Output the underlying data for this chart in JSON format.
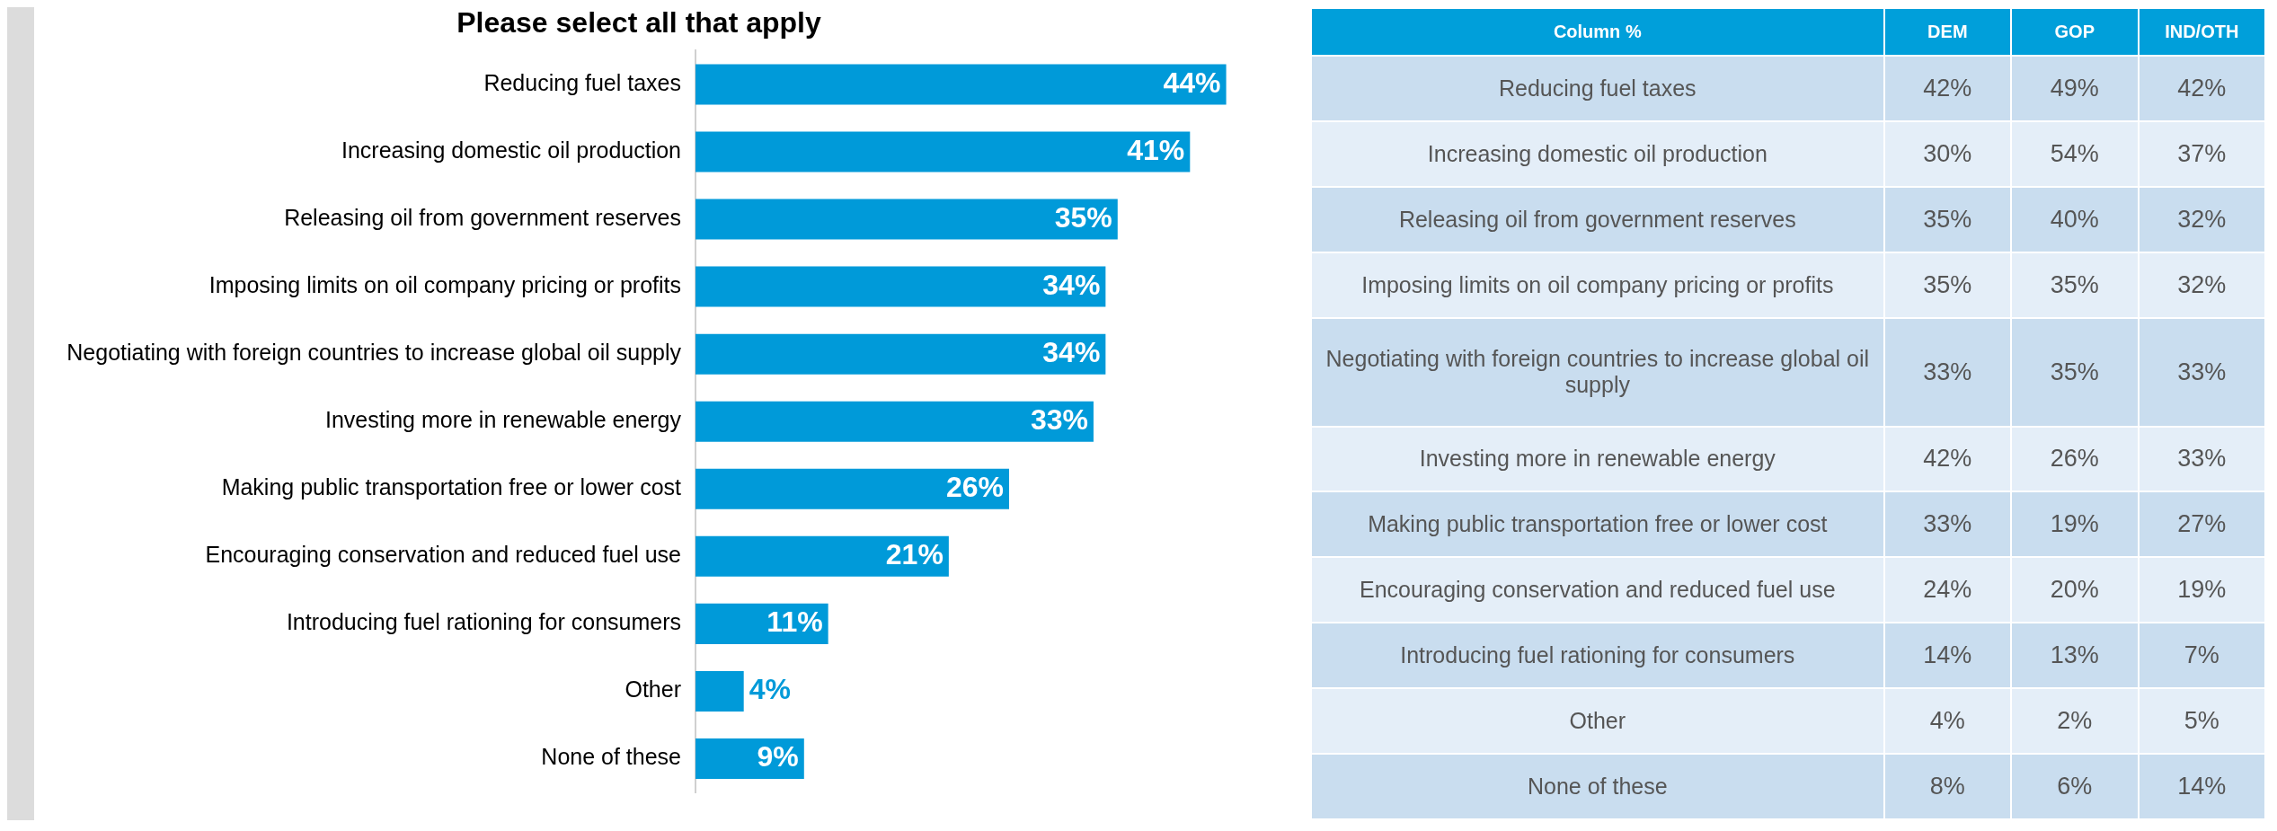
{
  "chart_data": [
    {
      "type": "bar",
      "orientation": "horizontal",
      "title": "Please select all that apply",
      "categories": [
        "Reducing fuel taxes",
        "Increasing domestic oil production",
        "Releasing oil from government reserves",
        "Imposing limits on oil company pricing or profits",
        "Negotiating with foreign countries to increase global oil supply",
        "Investing more in renewable energy",
        "Making public transportation free or lower cost",
        "Encouraging conservation and reduced fuel use",
        "Introducing fuel rationing for consumers",
        "Other",
        "None of these"
      ],
      "values": [
        44,
        41,
        35,
        34,
        34,
        33,
        26,
        21,
        11,
        4,
        9
      ],
      "value_labels": [
        "44%",
        "41%",
        "35%",
        "34%",
        "34%",
        "33%",
        "26%",
        "21%",
        "11%",
        "4%",
        "9%"
      ],
      "color": "#009ad9",
      "legend": false
    },
    {
      "type": "heatmap",
      "title": "Column %",
      "categories": [
        "DEM",
        "GOP",
        "IND/OTH"
      ],
      "y_categories": [
        "Reducing fuel taxes",
        "Increasing domestic oil production",
        "Releasing oil from government reserves",
        "Imposing limits on oil company pricing or profits",
        "Negotiating with foreign countries to increase global oil supply",
        "Investing more in renewable energy",
        "Making public transportation free or lower cost",
        "Encouraging conservation and reduced fuel use",
        "Introducing fuel rationing for consumers",
        "Other",
        "None of these"
      ],
      "cells": [
        [
          42,
          49,
          42
        ],
        [
          30,
          54,
          37
        ],
        [
          35,
          40,
          32
        ],
        [
          35,
          35,
          32
        ],
        [
          33,
          35,
          33
        ],
        [
          42,
          26,
          33
        ],
        [
          33,
          19,
          27
        ],
        [
          24,
          20,
          19
        ],
        [
          14,
          13,
          7
        ],
        [
          4,
          2,
          5
        ],
        [
          8,
          6,
          14
        ]
      ],
      "cell_labels": [
        [
          "42%",
          "49%",
          "42%"
        ],
        [
          "30%",
          "54%",
          "37%"
        ],
        [
          "35%",
          "40%",
          "32%"
        ],
        [
          "35%",
          "35%",
          "32%"
        ],
        [
          "33%",
          "35%",
          "33%"
        ],
        [
          "42%",
          "26%",
          "33%"
        ],
        [
          "33%",
          "19%",
          "27%"
        ],
        [
          "24%",
          "20%",
          "19%"
        ],
        [
          "14%",
          "13%",
          "7%"
        ],
        [
          "4%",
          "2%",
          "5%"
        ],
        [
          "8%",
          "6%",
          "14%"
        ]
      ]
    }
  ]
}
